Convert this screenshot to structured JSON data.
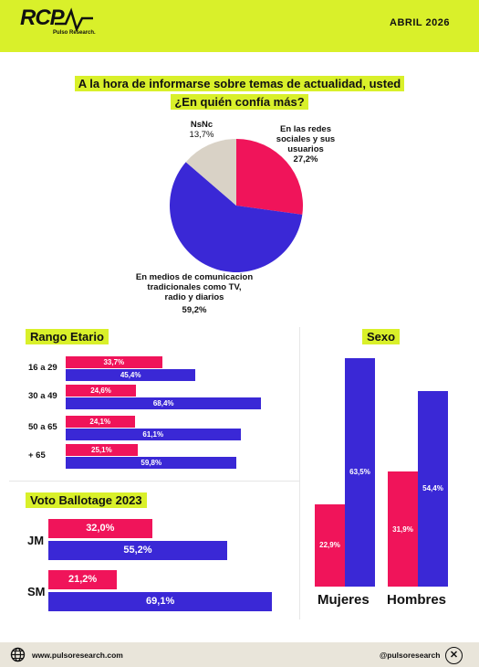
{
  "header": {
    "logo": "RCP",
    "logo_sub": "Pulso Research.",
    "date": "ABRIL 2026"
  },
  "colors": {
    "accent": "#d9f02a",
    "pink": "#f0145a",
    "blue": "#3a28d6",
    "grey": "#d9d2c6"
  },
  "question": {
    "line1": "A la hora de informarse sobre temas de actualidad, usted",
    "line2": "¿En quién confía más?"
  },
  "chart_data": [
    {
      "type": "pie",
      "slices": [
        {
          "label_lines": [
            "En las redes",
            "sociales y sus",
            "usuarios"
          ],
          "value": 27.2,
          "value_text": "27,2%",
          "color": "#f0145a"
        },
        {
          "label_lines": [
            "En medios de comunicacion",
            "tradicionales como TV,",
            "radio y diarios"
          ],
          "value": 59.2,
          "value_text": "59,2%",
          "color": "#3a28d6"
        },
        {
          "label_lines": [
            "NsNc"
          ],
          "value": 13.7,
          "value_text": "13,7%",
          "color": "#d9d2c6"
        }
      ]
    },
    {
      "type": "bar",
      "title": "Rango Etario",
      "orientation": "horizontal",
      "categories": [
        "16 a 29",
        "30 a 49",
        "50 a 65",
        "+ 65"
      ],
      "series": [
        {
          "values": [
            33.7,
            24.6,
            24.1,
            25.1
          ],
          "labels": [
            "33,7%",
            "24,6%",
            "24,1%",
            "25,1%"
          ],
          "color": "#f0145a"
        },
        {
          "values": [
            45.4,
            68.4,
            61.1,
            59.8
          ],
          "labels": [
            "45,4%",
            "68,4%",
            "61,1%",
            "59,8%"
          ],
          "color": "#3a28d6"
        }
      ]
    },
    {
      "type": "bar",
      "title": "Sexo",
      "orientation": "vertical",
      "categories": [
        "Mujeres",
        "Hombres"
      ],
      "series": [
        {
          "values": [
            22.9,
            31.9
          ],
          "labels": [
            "22,9%",
            "31,9%"
          ],
          "color": "#f0145a"
        },
        {
          "values": [
            63.5,
            54.4
          ],
          "labels": [
            "63,5%",
            "54,4%"
          ],
          "color": "#3a28d6"
        }
      ]
    },
    {
      "type": "bar",
      "title": "Voto Ballotage 2023",
      "orientation": "horizontal",
      "categories": [
        "JM",
        "SM"
      ],
      "series": [
        {
          "values": [
            32.0,
            21.2
          ],
          "labels": [
            "32,0%",
            "21,2%"
          ],
          "color": "#f0145a"
        },
        {
          "values": [
            55.2,
            69.1
          ],
          "labels": [
            "55,2%",
            "69,1%"
          ],
          "color": "#3a28d6"
        }
      ]
    }
  ],
  "footer": {
    "website": "www.pulsoresearch.com",
    "handle": "@pulsoresearch",
    "globe_icon": "globe-icon",
    "x_icon": "x-icon"
  }
}
